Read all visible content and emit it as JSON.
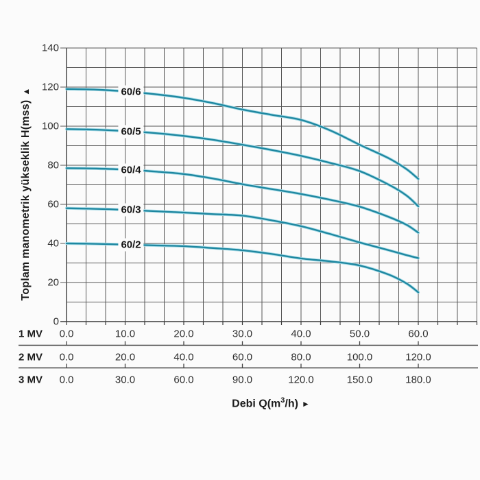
{
  "y_axis": {
    "title": "Toplam manometrik yükseklik H(mss)",
    "arrow": "▲",
    "tick_labels": [
      "0",
      "20",
      "40",
      "60",
      "80",
      "100",
      "120",
      "140"
    ]
  },
  "x_axis": {
    "title_prefix": "Debi Q(m",
    "title_sup": "3",
    "title_suffix": "/h)",
    "arrow": "►"
  },
  "colors": {
    "curve": "#1e87a0",
    "curve_halo": "#a6dbe7",
    "grid": "#565656",
    "axis": "#3a3a3a",
    "separator": "#444444",
    "text": "#2e2e2e",
    "background": "#fbfbfb"
  },
  "chart_data": {
    "type": "line",
    "title": "",
    "ylabel": "Toplam manometrik yükseklik H(mss)",
    "xlabel": "Debi Q(m3/h)",
    "ylim": [
      0,
      140
    ],
    "xlim": [
      0,
      70
    ],
    "grid": true,
    "y_grid_step": 10,
    "x_grid_columns": 21,
    "y_major_ticks": [
      0,
      20,
      40,
      60,
      80,
      100,
      120,
      140
    ],
    "x_major_ticks_1mv": [
      0,
      10,
      20,
      30,
      40,
      50,
      60
    ],
    "scales": [
      {
        "label": "1 MV",
        "values": [
          "0.0",
          "10.0",
          "20.0",
          "30.0",
          "40.0",
          "50.0",
          "60.0"
        ]
      },
      {
        "label": "2 MV",
        "values": [
          "0.0",
          "20.0",
          "40.0",
          "60.0",
          "80.0",
          "100.0",
          "120.0"
        ]
      },
      {
        "label": "3 MV",
        "values": [
          "0.0",
          "30.0",
          "60.0",
          "90.0",
          "120.0",
          "150.0",
          "180.0"
        ]
      }
    ],
    "series": [
      {
        "name": "60/6",
        "points": [
          [
            0,
            119
          ],
          [
            5,
            118.7
          ],
          [
            10,
            117.8
          ],
          [
            15,
            116.4
          ],
          [
            20,
            114.5
          ],
          [
            25,
            111.8
          ],
          [
            30,
            108.5
          ],
          [
            35,
            105.8
          ],
          [
            40,
            103.2
          ],
          [
            45,
            97.8
          ],
          [
            50,
            90.5
          ],
          [
            55,
            83.5
          ],
          [
            58,
            78
          ],
          [
            60,
            73
          ]
        ]
      },
      {
        "name": "60/5",
        "points": [
          [
            0,
            98.5
          ],
          [
            5,
            98.2
          ],
          [
            10,
            97.5
          ],
          [
            15,
            96.5
          ],
          [
            20,
            95
          ],
          [
            25,
            93
          ],
          [
            30,
            90.5
          ],
          [
            35,
            87.8
          ],
          [
            40,
            84.8
          ],
          [
            45,
            81.2
          ],
          [
            50,
            77
          ],
          [
            55,
            70
          ],
          [
            58,
            64.5
          ],
          [
            60,
            59
          ]
        ]
      },
      {
        "name": "60/4",
        "points": [
          [
            0,
            78.5
          ],
          [
            5,
            78.3
          ],
          [
            10,
            77.8
          ],
          [
            15,
            76.8
          ],
          [
            20,
            75.5
          ],
          [
            25,
            73.2
          ],
          [
            30,
            70.3
          ],
          [
            35,
            67.8
          ],
          [
            40,
            65.3
          ],
          [
            45,
            62.3
          ],
          [
            50,
            58.8
          ],
          [
            55,
            53.5
          ],
          [
            58,
            49.5
          ],
          [
            60,
            45.5
          ]
        ]
      },
      {
        "name": "60/3",
        "points": [
          [
            0,
            58
          ],
          [
            5,
            57.7
          ],
          [
            10,
            57.2
          ],
          [
            15,
            56.5
          ],
          [
            20,
            55.8
          ],
          [
            25,
            55
          ],
          [
            30,
            54.2
          ],
          [
            35,
            51.8
          ],
          [
            40,
            48.8
          ],
          [
            45,
            44.8
          ],
          [
            50,
            40.5
          ],
          [
            55,
            36.5
          ],
          [
            58,
            34
          ],
          [
            60,
            32.5
          ]
        ]
      },
      {
        "name": "60/2",
        "points": [
          [
            0,
            40
          ],
          [
            5,
            39.8
          ],
          [
            10,
            39.4
          ],
          [
            15,
            39
          ],
          [
            20,
            38.6
          ],
          [
            25,
            37.6
          ],
          [
            30,
            36.5
          ],
          [
            35,
            34.6
          ],
          [
            40,
            32.3
          ],
          [
            45,
            30.8
          ],
          [
            50,
            28.7
          ],
          [
            55,
            24
          ],
          [
            58,
            19.5
          ],
          [
            60,
            15
          ]
        ]
      }
    ],
    "series_label_q": 11
  }
}
